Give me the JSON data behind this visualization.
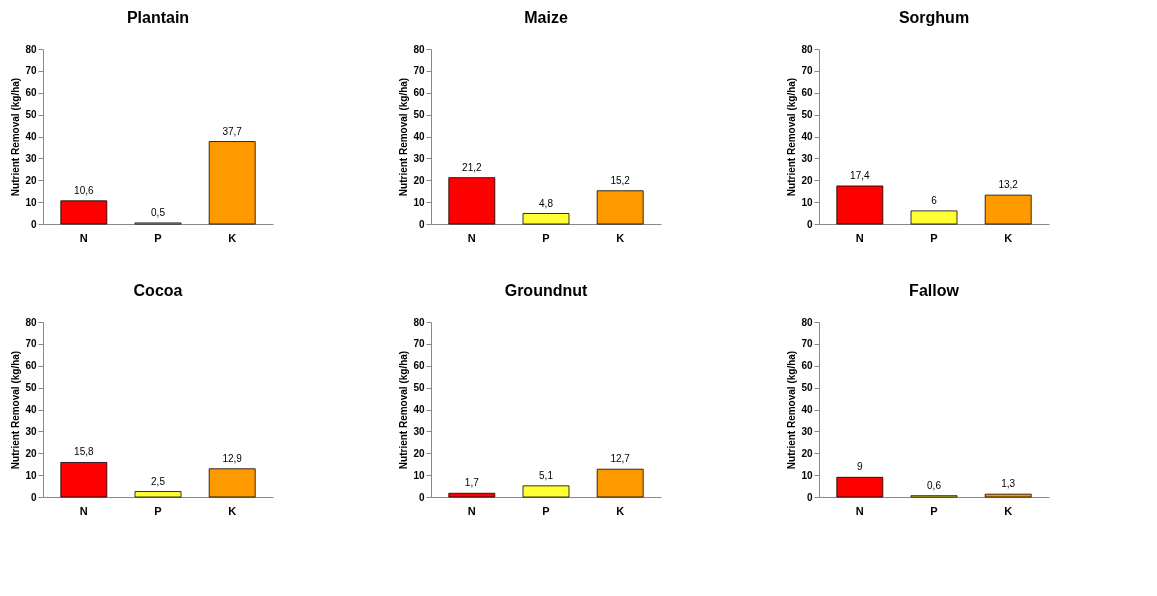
{
  "chart_data": [
    {
      "type": "bar",
      "title": "Plantain",
      "ylabel": "Nutrient Removal (kg/ha)",
      "categories": [
        "N",
        "P",
        "K"
      ],
      "values": [
        10.6,
        0.5,
        37.7
      ],
      "value_labels": [
        "10,6",
        "0,5",
        "37,7"
      ],
      "colors": [
        "#ff0000",
        "#ffff33",
        "#ff9900"
      ],
      "ylim": [
        0,
        80
      ],
      "yticks": [
        0,
        10,
        20,
        30,
        40,
        50,
        60,
        70,
        80
      ],
      "grid": false,
      "legend": false
    },
    {
      "type": "bar",
      "title": "Maize",
      "ylabel": "Nutrient Removal (kg/ha)",
      "categories": [
        "N",
        "P",
        "K"
      ],
      "values": [
        21.2,
        4.8,
        15.2
      ],
      "value_labels": [
        "21,2",
        "4,8",
        "15,2"
      ],
      "colors": [
        "#ff0000",
        "#ffff33",
        "#ff9900"
      ],
      "ylim": [
        0,
        80
      ],
      "yticks": [
        0,
        10,
        20,
        30,
        40,
        50,
        60,
        70,
        80
      ],
      "grid": false,
      "legend": false
    },
    {
      "type": "bar",
      "title": "Sorghum",
      "ylabel": "Nutrient Removal (kg/ha)",
      "categories": [
        "N",
        "P",
        "K"
      ],
      "values": [
        17.4,
        6,
        13.2
      ],
      "value_labels": [
        "17,4",
        "6",
        "13,2"
      ],
      "colors": [
        "#ff0000",
        "#ffff33",
        "#ff9900"
      ],
      "ylim": [
        0,
        80
      ],
      "yticks": [
        0,
        10,
        20,
        30,
        40,
        50,
        60,
        70,
        80
      ],
      "grid": false,
      "legend": false
    },
    {
      "type": "bar",
      "title": "Cocoa",
      "ylabel": "Nutrient Removal (kg/ha)",
      "categories": [
        "N",
        "P",
        "K"
      ],
      "values": [
        15.8,
        2.5,
        12.9
      ],
      "value_labels": [
        "15,8",
        "2,5",
        "12,9"
      ],
      "colors": [
        "#ff0000",
        "#ffff33",
        "#ff9900"
      ],
      "ylim": [
        0,
        80
      ],
      "yticks": [
        0,
        10,
        20,
        30,
        40,
        50,
        60,
        70,
        80
      ],
      "grid": false,
      "legend": false
    },
    {
      "type": "bar",
      "title": "Groundnut",
      "ylabel": "Nutrient Removal (kg/ha)",
      "categories": [
        "N",
        "P",
        "K"
      ],
      "values": [
        1.7,
        5.1,
        12.7
      ],
      "value_labels": [
        "1,7",
        "5,1",
        "12,7"
      ],
      "colors": [
        "#ff0000",
        "#ffff33",
        "#ff9900"
      ],
      "ylim": [
        0,
        80
      ],
      "yticks": [
        0,
        10,
        20,
        30,
        40,
        50,
        60,
        70,
        80
      ],
      "grid": false,
      "legend": false
    },
    {
      "type": "bar",
      "title": "Fallow",
      "ylabel": "Nutrient Removal (kg/ha)",
      "categories": [
        "N",
        "P",
        "K"
      ],
      "values": [
        9,
        0.6,
        1.3
      ],
      "value_labels": [
        "9",
        "0,6",
        "1,3"
      ],
      "colors": [
        "#ff0000",
        "#ffff33",
        "#ff9900"
      ],
      "ylim": [
        0,
        80
      ],
      "yticks": [
        0,
        10,
        20,
        30,
        40,
        50,
        60,
        70,
        80
      ],
      "grid": false,
      "legend": false
    }
  ]
}
